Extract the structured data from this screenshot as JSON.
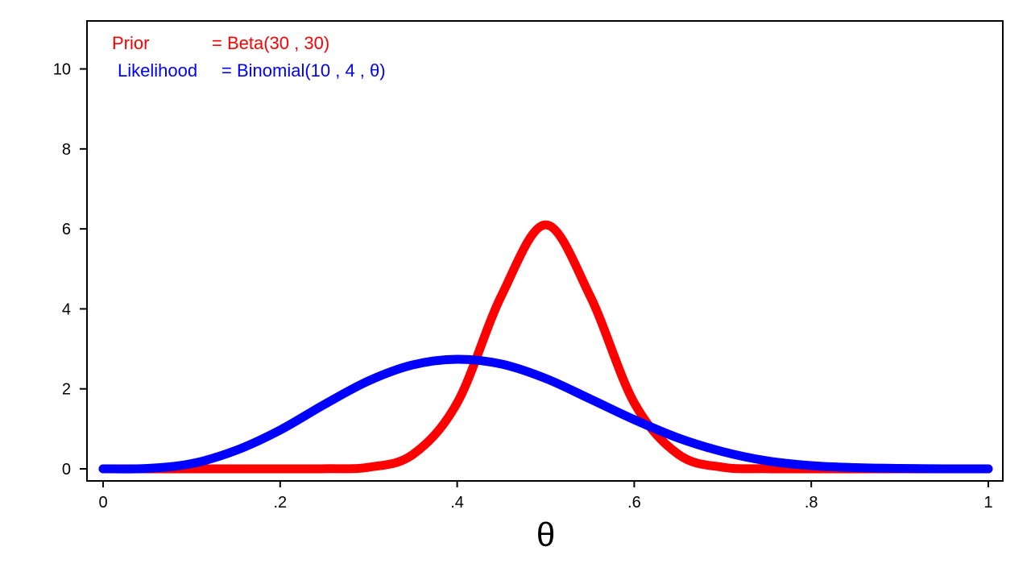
{
  "chart_data": {
    "type": "line",
    "xlabel": "θ",
    "ylabel": "",
    "xlim": [
      0,
      1
    ],
    "ylim": [
      0,
      11.2
    ],
    "x_ticks": [
      0,
      0.2,
      0.4,
      0.6,
      0.8,
      1
    ],
    "x_tick_labels": [
      "0",
      ".2",
      ".4",
      ".6",
      ".8",
      "1"
    ],
    "y_ticks": [
      0,
      2,
      4,
      6,
      8,
      10
    ],
    "y_tick_labels": [
      "0",
      "2",
      "4",
      "6",
      "8",
      "10"
    ],
    "grid": false,
    "legend_position": "top-left",
    "annotations": [
      {
        "parts": [
          "Prior",
          "= Beta(30 , 30)"
        ],
        "color": "#ff0000"
      },
      {
        "parts": [
          "Likelihood",
          "= Binomial(10 , 4 , θ)"
        ],
        "color": "#0000ff"
      }
    ],
    "series": [
      {
        "color": "#ff0000",
        "x": [
          0,
          0.05,
          0.1,
          0.15,
          0.2,
          0.25,
          0.3,
          0.35,
          0.4,
          0.45,
          0.5,
          0.55,
          0.6,
          0.65,
          0.7,
          0.75,
          0.8,
          0.85,
          0.9,
          0.95,
          1
        ],
        "y": [
          0,
          0,
          0,
          0,
          0,
          0.003,
          0.04,
          0.36,
          1.65,
          4.33,
          6.1,
          4.33,
          1.65,
          0.36,
          0.04,
          0.003,
          0,
          0,
          0,
          0,
          0
        ]
      },
      {
        "color": "#0000ff",
        "x": [
          0,
          0.05,
          0.1,
          0.15,
          0.2,
          0.25,
          0.3,
          0.35,
          0.4,
          0.45,
          0.5,
          0.55,
          0.6,
          0.65,
          0.7,
          0.75,
          0.8,
          0.85,
          0.9,
          0.95,
          1
        ],
        "y": [
          0,
          0.01,
          0.13,
          0.46,
          0.97,
          1.61,
          2.2,
          2.6,
          2.74,
          2.62,
          2.26,
          1.75,
          1.23,
          0.77,
          0.43,
          0.2,
          0.08,
          0.03,
          0.01,
          0,
          0
        ]
      }
    ]
  }
}
